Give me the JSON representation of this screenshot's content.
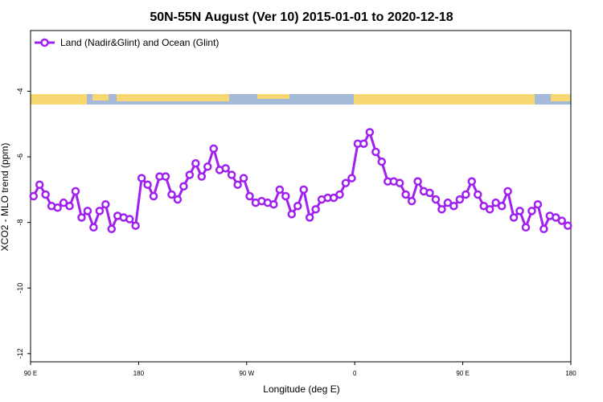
{
  "chart_data": {
    "type": "line",
    "title": "50N-55N August (Ver 10)   2015-01-01 to 2020-12-18",
    "xlabel": "Longitude (deg E)",
    "ylabel": "XCO2 - MLO trend (ppm)",
    "legend_loc": "upper left",
    "x": [
      92.5,
      97.5,
      102.5,
      107.5,
      112.5,
      117.5,
      122.5,
      127.5,
      132.5,
      137.5,
      142.5,
      147.5,
      152.5,
      157.5,
      162.5,
      167.5,
      172.5,
      177.5,
      182.5,
      187.5,
      192.5,
      197.5,
      202.5,
      207.5,
      212.5,
      217.5,
      222.5,
      227.5,
      232.5,
      237.5,
      242.5,
      247.5,
      252.5,
      257.5,
      262.5,
      267.5,
      272.5,
      277.5,
      282.5,
      287.5,
      292.5,
      297.5,
      302.5,
      307.5,
      312.5,
      317.5,
      322.5,
      327.5,
      332.5,
      337.5,
      342.5,
      347.5,
      352.5,
      357.5,
      362.5,
      367.5,
      372.5,
      377.5,
      382.5,
      387.5,
      392.5,
      397.5,
      402.5,
      407.5,
      412.5,
      417.5,
      422.5,
      427.5,
      432.5,
      437.5,
      442.5,
      447.5,
      452.5,
      457.5,
      462.5,
      467.5,
      472.5,
      477.5,
      482.5,
      487.5,
      492.5,
      497.5,
      502.5,
      507.5,
      512.5,
      517.5,
      522.5,
      527.5,
      532.5,
      537.5
    ],
    "series": [
      {
        "name": "Land (Nadir&Glint) and Ocean (Glint)",
        "color": "#a020f0",
        "values": [
          -7.2,
          -6.85,
          -7.15,
          -7.5,
          -7.55,
          -7.4,
          -7.5,
          -7.05,
          -7.85,
          -7.65,
          -8.15,
          -7.65,
          -7.45,
          -8.2,
          -7.8,
          -7.85,
          -7.9,
          -8.1,
          -6.65,
          -6.85,
          -7.2,
          -6.6,
          -6.6,
          -7.15,
          -7.3,
          -6.9,
          -6.55,
          -6.2,
          -6.6,
          -6.3,
          -5.75,
          -6.4,
          -6.35,
          -6.55,
          -6.85,
          -6.65,
          -7.2,
          -7.4,
          -7.35,
          -7.4,
          -7.45,
          -7.0,
          -7.2,
          -7.75,
          -7.5,
          -7.0,
          -7.85,
          -7.6,
          -7.3,
          -7.25,
          -7.25,
          -7.15,
          -6.8,
          -6.65,
          -5.6,
          -5.6,
          -5.25,
          -5.85,
          -6.15,
          -6.75,
          -6.75,
          -6.8,
          -7.15,
          -7.35,
          -6.75,
          -7.05,
          -7.1,
          -7.3,
          -7.6,
          -7.4,
          -7.5,
          -7.3,
          -7.15,
          -6.75,
          -7.15,
          -7.5,
          -7.6,
          -7.4,
          -7.5,
          -7.05,
          -7.85,
          -7.65,
          -8.15,
          -7.65,
          -7.45,
          -8.2,
          -7.8,
          -7.85,
          -7.95,
          -8.1
        ]
      }
    ],
    "xlim": [
      90,
      540
    ],
    "xticks": [
      {
        "value": 90,
        "label": "90 E"
      },
      {
        "value": 180,
        "label": "180"
      },
      {
        "value": 270,
        "label": "90 W"
      },
      {
        "value": 360,
        "label": "0"
      },
      {
        "value": 450,
        "label": "90 E"
      },
      {
        "value": 540,
        "label": "180"
      }
    ],
    "ylim": [
      -12.25,
      -2.15
    ],
    "yticks": [
      -12,
      -10,
      -8,
      -6,
      -4
    ]
  }
}
